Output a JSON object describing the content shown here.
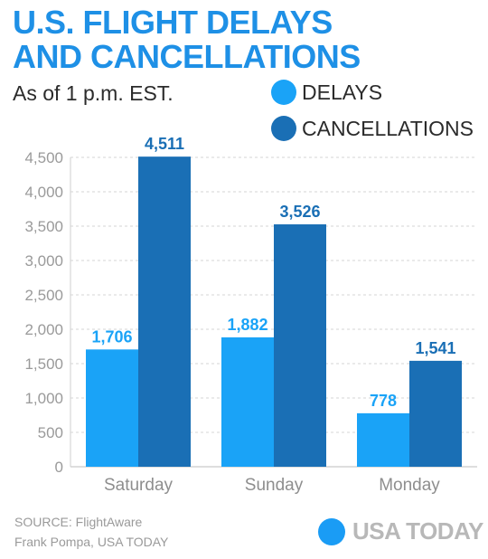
{
  "header": {
    "title_line1": "U.S. FLIGHT DELAYS",
    "title_line2": "AND CANCELLATIONS",
    "subtitle": "As of 1 p.m. EST."
  },
  "legend": [
    {
      "label": "DELAYS",
      "color": "#1aa3f7"
    },
    {
      "label": "CANCELLATIONS",
      "color": "#1a6fb5"
    }
  ],
  "chart_data": {
    "type": "bar",
    "categories": [
      "Saturday",
      "Sunday",
      "Monday"
    ],
    "series": [
      {
        "name": "DELAYS",
        "values": [
          1706,
          1882,
          778
        ],
        "labels": [
          "1,706",
          "1,882",
          "778"
        ],
        "color": "#1aa3f7"
      },
      {
        "name": "CANCELLATIONS",
        "values": [
          4511,
          3526,
          1541
        ],
        "labels": [
          "4,511",
          "3,526",
          "1,541"
        ],
        "color": "#1a6fb5"
      }
    ],
    "y_ticks": [
      0,
      500,
      1000,
      1500,
      2000,
      2500,
      3000,
      3500,
      4000,
      4500
    ],
    "y_tick_labels": [
      "0",
      "500",
      "1,000",
      "1,500",
      "2,000",
      "2,500",
      "3,000",
      "3,500",
      "4,000",
      "4,500"
    ],
    "ylim": [
      0,
      4500
    ],
    "grid": true,
    "legend_position": "top-right",
    "title": "U.S. FLIGHT DELAYS AND CANCELLATIONS",
    "xlabel": "",
    "ylabel": ""
  },
  "footer": {
    "source": "SOURCE: FlightAware",
    "credit": "Frank Pompa, USA TODAY",
    "brand": "USA TODAY"
  }
}
